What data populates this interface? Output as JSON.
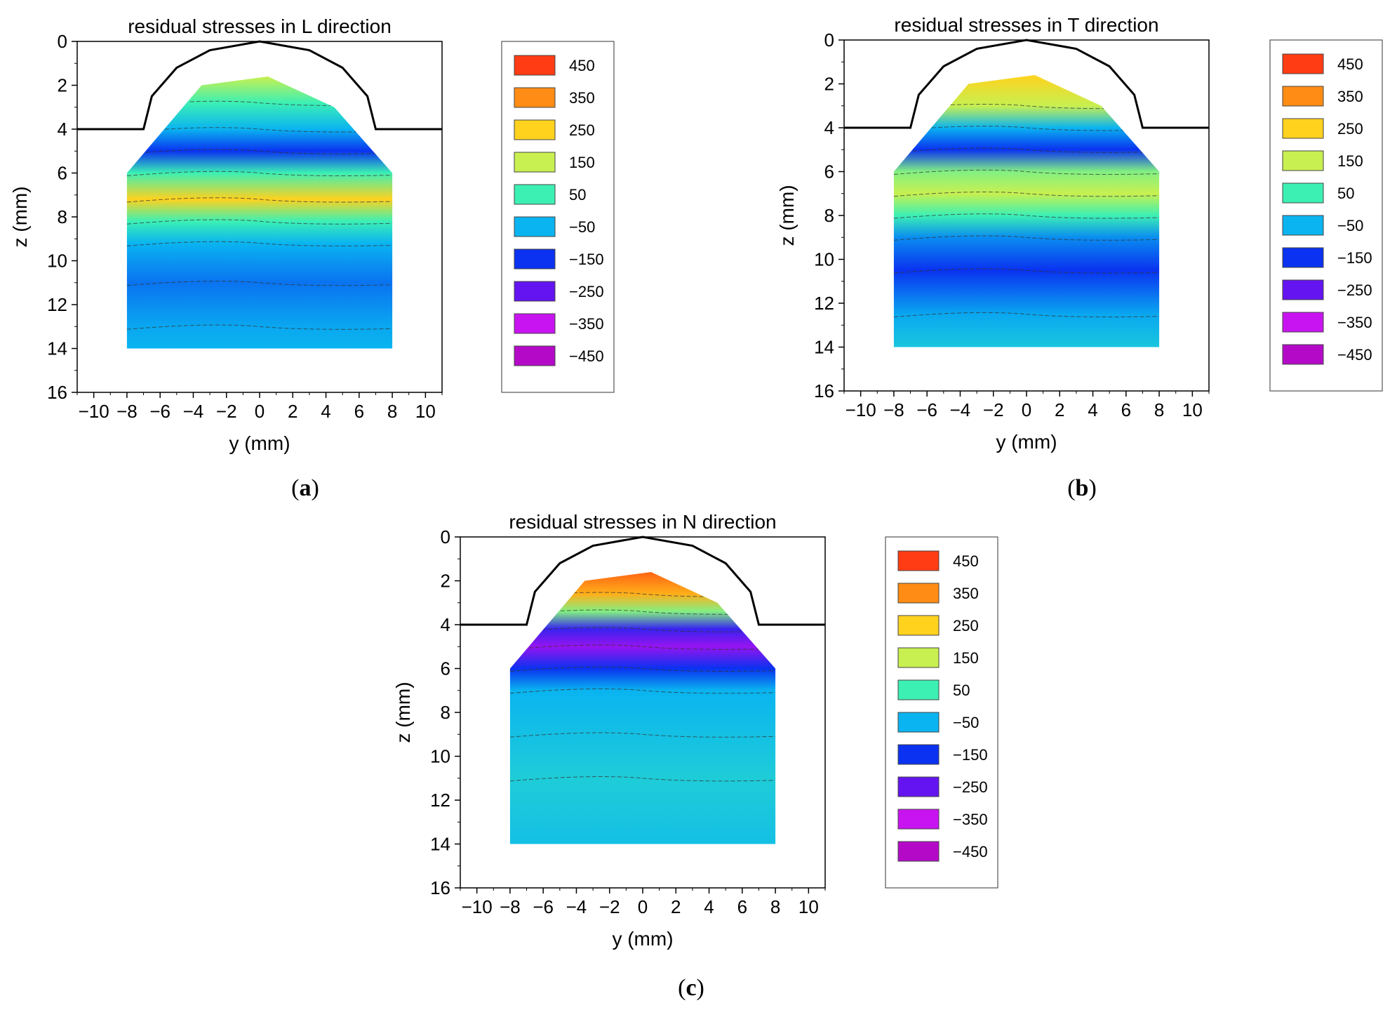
{
  "figure": {
    "panels": [
      {
        "label_open": "(",
        "label_letter": "a",
        "label_close": ")"
      },
      {
        "label_open": "(",
        "label_letter": "b",
        "label_close": ")"
      },
      {
        "label_open": "(",
        "label_letter": "c",
        "label_close": ")"
      }
    ]
  },
  "chart_data": [
    {
      "type": "heatmap",
      "subtype": "filled-contour",
      "title": "residual stresses in L direction",
      "xlabel": "y (mm)",
      "ylabel": "z (mm)",
      "xlim": [
        -11,
        11
      ],
      "ylim": [
        16,
        0
      ],
      "xticks": [
        -10,
        -8,
        -6,
        -4,
        -2,
        0,
        2,
        4,
        6,
        8,
        10
      ],
      "yticks": [
        0,
        2,
        4,
        6,
        8,
        10,
        12,
        14,
        16
      ],
      "legend": {
        "position": "right",
        "levels": [
          "450",
          "350",
          "250",
          "150",
          "50",
          "−50",
          "−150",
          "−250",
          "−350",
          "−450"
        ]
      },
      "colors": {
        "450": "#ff3c14",
        "350": "#ff8c14",
        "250": "#ffd21e",
        "150": "#c8f050",
        "50": "#3cf0b4",
        "-50": "#0ab4f0",
        "-150": "#0a32f0",
        "-250": "#6414f0",
        "-350": "#c814f0",
        "-450": "#b40ac8"
      },
      "profile_outline": [
        [
          -11,
          4
        ],
        [
          -7,
          4
        ],
        [
          -6.5,
          2.5
        ],
        [
          -5,
          1.2
        ],
        [
          -3,
          0.4
        ],
        [
          0,
          0
        ],
        [
          3,
          0.4
        ],
        [
          5,
          1.2
        ],
        [
          6.5,
          2.5
        ],
        [
          7,
          4
        ],
        [
          11,
          4
        ]
      ],
      "measured_region": [
        [
          -8,
          14
        ],
        [
          -8,
          6
        ],
        [
          -3.5,
          2
        ],
        [
          0.5,
          1.6
        ],
        [
          4.5,
          3
        ],
        [
          8,
          6
        ],
        [
          8,
          14
        ]
      ],
      "stress_bands": [
        {
          "z": 1.6,
          "value": 150
        },
        {
          "z": 2.8,
          "value": 50
        },
        {
          "z": 4.0,
          "value": -50
        },
        {
          "z": 5.0,
          "value": -150
        },
        {
          "z": 6.0,
          "value": 50
        },
        {
          "z": 7.2,
          "value": 250
        },
        {
          "z": 8.2,
          "value": 50
        },
        {
          "z": 9.2,
          "value": -50
        },
        {
          "z": 11.0,
          "value": -100
        },
        {
          "z": 13.0,
          "value": -60
        },
        {
          "z": 14.0,
          "value": -50
        }
      ]
    },
    {
      "type": "heatmap",
      "subtype": "filled-contour",
      "title": "residual stresses in T direction",
      "xlabel": "y (mm)",
      "ylabel": "z (mm)",
      "xlim": [
        -11,
        11
      ],
      "ylim": [
        16,
        0
      ],
      "xticks": [
        -10,
        -8,
        -6,
        -4,
        -2,
        0,
        2,
        4,
        6,
        8,
        10
      ],
      "yticks": [
        0,
        2,
        4,
        6,
        8,
        10,
        12,
        14,
        16
      ],
      "legend": {
        "position": "right",
        "levels": [
          "450",
          "350",
          "250",
          "150",
          "50",
          "−50",
          "−150",
          "−250",
          "−350",
          "−450"
        ]
      },
      "colors": {
        "450": "#ff3c14",
        "350": "#ff8c14",
        "250": "#ffd21e",
        "150": "#c8f050",
        "50": "#3cf0b4",
        "-50": "#0ab4f0",
        "-150": "#0a32f0",
        "-250": "#6414f0",
        "-350": "#c814f0",
        "-450": "#b40ac8"
      },
      "profile_outline": [
        [
          -11,
          4
        ],
        [
          -7,
          4
        ],
        [
          -6.5,
          2.5
        ],
        [
          -5,
          1.2
        ],
        [
          -3,
          0.4
        ],
        [
          0,
          0
        ],
        [
          3,
          0.4
        ],
        [
          5,
          1.2
        ],
        [
          6.5,
          2.5
        ],
        [
          7,
          4
        ],
        [
          11,
          4
        ]
      ],
      "measured_region": [
        [
          -8,
          14
        ],
        [
          -8,
          6
        ],
        [
          -3.5,
          2
        ],
        [
          0.5,
          1.6
        ],
        [
          4.5,
          3
        ],
        [
          8,
          6
        ],
        [
          8,
          14
        ]
      ],
      "stress_bands": [
        {
          "z": 1.6,
          "value": 250
        },
        {
          "z": 3.0,
          "value": 150
        },
        {
          "z": 4.0,
          "value": -50
        },
        {
          "z": 5.0,
          "value": -150
        },
        {
          "z": 6.0,
          "value": 100
        },
        {
          "z": 7.0,
          "value": 150
        },
        {
          "z": 8.0,
          "value": 50
        },
        {
          "z": 9.0,
          "value": -80
        },
        {
          "z": 10.5,
          "value": -150
        },
        {
          "z": 12.5,
          "value": -60
        },
        {
          "z": 14.0,
          "value": -20
        }
      ]
    },
    {
      "type": "heatmap",
      "subtype": "filled-contour",
      "title": "residual stresses in N direction",
      "xlabel": "y (mm)",
      "ylabel": "z (mm)",
      "xlim": [
        -11,
        11
      ],
      "ylim": [
        16,
        0
      ],
      "xticks": [
        -10,
        -8,
        -6,
        -4,
        -2,
        0,
        2,
        4,
        6,
        8,
        10
      ],
      "yticks": [
        0,
        2,
        4,
        6,
        8,
        10,
        12,
        14,
        16
      ],
      "legend": {
        "position": "right",
        "levels": [
          "450",
          "350",
          "250",
          "150",
          "50",
          "−50",
          "−150",
          "−250",
          "−350",
          "−450"
        ]
      },
      "colors": {
        "450": "#ff3c14",
        "350": "#ff8c14",
        "250": "#ffd21e",
        "150": "#c8f050",
        "50": "#3cf0b4",
        "-50": "#0ab4f0",
        "-150": "#0a32f0",
        "-250": "#6414f0",
        "-350": "#c814f0",
        "-450": "#b40ac8"
      },
      "profile_outline": [
        [
          -11,
          4
        ],
        [
          -7,
          4
        ],
        [
          -6.5,
          2.5
        ],
        [
          -5,
          1.2
        ],
        [
          -3,
          0.4
        ],
        [
          0,
          0
        ],
        [
          3,
          0.4
        ],
        [
          5,
          1.2
        ],
        [
          6.5,
          2.5
        ],
        [
          7,
          4
        ],
        [
          11,
          4
        ]
      ],
      "measured_region": [
        [
          -8,
          14
        ],
        [
          -8,
          6
        ],
        [
          -3.5,
          2
        ],
        [
          0.5,
          1.6
        ],
        [
          4.5,
          3
        ],
        [
          8,
          6
        ],
        [
          8,
          14
        ]
      ],
      "stress_bands": [
        {
          "z": 1.6,
          "value": 400
        },
        {
          "z": 2.6,
          "value": 300
        },
        {
          "z": 3.4,
          "value": 100
        },
        {
          "z": 4.2,
          "value": -200
        },
        {
          "z": 5.0,
          "value": -300
        },
        {
          "z": 6.0,
          "value": -150
        },
        {
          "z": 7.0,
          "value": -50
        },
        {
          "z": 9.0,
          "value": -30
        },
        {
          "z": 11.0,
          "value": -10
        },
        {
          "z": 14.0,
          "value": -30
        }
      ]
    }
  ]
}
